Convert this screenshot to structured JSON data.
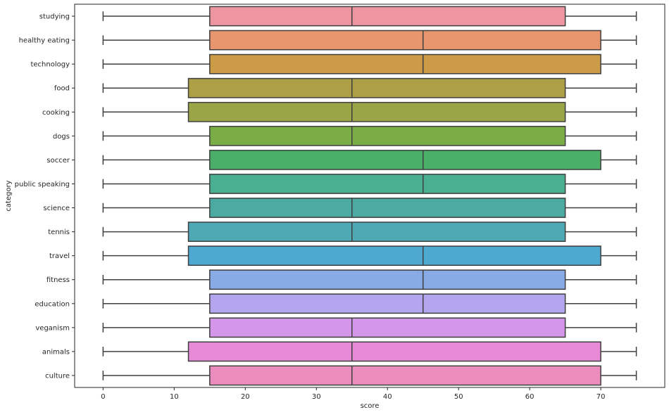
{
  "chart_data": {
    "type": "boxplot",
    "orientation": "horizontal",
    "xlabel": "score",
    "ylabel": "category",
    "xlim": [
      -4,
      79
    ],
    "xticks": [
      0,
      10,
      20,
      30,
      40,
      50,
      60,
      70
    ],
    "grid": false,
    "categories": [
      "studying",
      "healthy eating",
      "technology",
      "food",
      "cooking",
      "dogs",
      "soccer",
      "public speaking",
      "science",
      "tennis",
      "travel",
      "fitness",
      "education",
      "veganism",
      "animals",
      "culture"
    ],
    "boxes": [
      {
        "category": "studying",
        "min": 0,
        "q1": 15,
        "median": 35,
        "q3": 65,
        "max": 75,
        "color": "#ed96a1"
      },
      {
        "category": "healthy eating",
        "min": 0,
        "q1": 15,
        "median": 45,
        "q3": 70,
        "max": 75,
        "color": "#e8966e"
      },
      {
        "category": "technology",
        "min": 0,
        "q1": 15,
        "median": 45,
        "q3": 70,
        "max": 75,
        "color": "#cc9b48"
      },
      {
        "category": "food",
        "min": 0,
        "q1": 12,
        "median": 35,
        "q3": 65,
        "max": 75,
        "color": "#ad9f45"
      },
      {
        "category": "cooking",
        "min": 0,
        "q1": 12,
        "median": 35,
        "q3": 65,
        "max": 75,
        "color": "#9aa548"
      },
      {
        "category": "dogs",
        "min": 0,
        "q1": 15,
        "median": 35,
        "q3": 65,
        "max": 75,
        "color": "#7aad45"
      },
      {
        "category": "soccer",
        "min": 0,
        "q1": 15,
        "median": 45,
        "q3": 70,
        "max": 75,
        "color": "#4aaf68"
      },
      {
        "category": "public speaking",
        "min": 0,
        "q1": 15,
        "median": 45,
        "q3": 65,
        "max": 75,
        "color": "#4aae90"
      },
      {
        "category": "science",
        "min": 0,
        "q1": 15,
        "median": 35,
        "q3": 65,
        "max": 75,
        "color": "#4baaa1"
      },
      {
        "category": "tennis",
        "min": 0,
        "q1": 12,
        "median": 35,
        "q3": 65,
        "max": 75,
        "color": "#4ea9b5"
      },
      {
        "category": "travel",
        "min": 0,
        "q1": 12,
        "median": 45,
        "q3": 70,
        "max": 75,
        "color": "#4ea9d1"
      },
      {
        "category": "fitness",
        "min": 0,
        "q1": 15,
        "median": 45,
        "q3": 65,
        "max": 75,
        "color": "#88abe6"
      },
      {
        "category": "education",
        "min": 0,
        "q1": 15,
        "median": 45,
        "q3": 65,
        "max": 75,
        "color": "#b4a6ee"
      },
      {
        "category": "veganism",
        "min": 0,
        "q1": 15,
        "median": 35,
        "q3": 65,
        "max": 75,
        "color": "#d496e8"
      },
      {
        "category": "animals",
        "min": 0,
        "q1": 12,
        "median": 35,
        "q3": 70,
        "max": 75,
        "color": "#e68ad6"
      },
      {
        "category": "culture",
        "min": 0,
        "q1": 15,
        "median": 35,
        "q3": 70,
        "max": 75,
        "color": "#ea8dbc"
      }
    ],
    "line_color": "#3f3f3f"
  }
}
